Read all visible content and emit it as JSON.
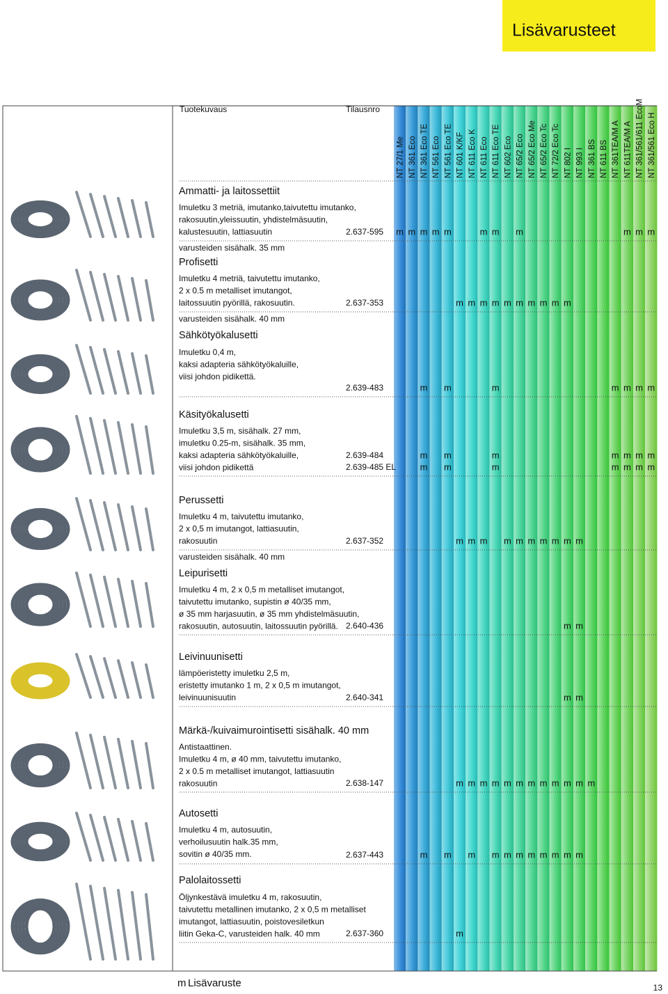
{
  "header": {
    "title": "Lisävarusteet"
  },
  "table": {
    "columns_header": {
      "description": "Tuotekuvaus",
      "order_number": "Tilausnro"
    },
    "models": [
      "NT 27/1 Me",
      "NT 361 Eco",
      "NT 361 Eco TE",
      "NT 561 Eco",
      "NT 561 Eco TE",
      "NT 601 K/KF",
      "NT 611 Eco K",
      "NT 611 Eco",
      "NT 611 Eco TE",
      "NT 602 Eco",
      "NT 65/2 Eco",
      "NT 65/2 Eco Me",
      "NT 65/2 Eco Tc",
      "NT 72/2 Eco Tc",
      "NT 802 I",
      "NT 993 I",
      "NT 361 BS",
      "NT 611 BS",
      "NT 361TEA/M A",
      "NT 611TEA/M A",
      "NT 361/561/611 EcoM",
      "NT 361/561 Eco H"
    ],
    "sections": [
      {
        "title": "Ammatti- ja laitossettiit",
        "lines": [
          "Imuletku 3 metriä, imutanko,taivutettu imutanko,",
          "rakosuutin,yleissuutin, yhdistelmäsuutin,",
          "kalustesuutin, lattiasuutin"
        ],
        "orders": [
          {
            "number": "2.637-595",
            "marks": [
              "m",
              "m",
              "m",
              "m",
              "m",
              null,
              null,
              "m",
              "m",
              null,
              "m",
              null,
              null,
              null,
              null,
              null,
              null,
              null,
              null,
              "m",
              "m",
              "m"
            ]
          }
        ],
        "note": "varusteiden sisähalk. 35 mm"
      },
      {
        "title": "Profisetti",
        "lines": [
          "Imuletku 4 metriä, taivutettu imutanko,",
          "2 x 0.5 m metalliset imutangot,",
          "laitossuutin pyörillä, rakosuutin."
        ],
        "orders": [
          {
            "number": "2.637-353",
            "marks": [
              null,
              null,
              null,
              null,
              null,
              "m",
              "m",
              "m",
              "m",
              "m",
              "m",
              "m",
              "m",
              "m",
              "m",
              null,
              null,
              null,
              null,
              null,
              null,
              null
            ]
          }
        ],
        "note": "varusteiden sisähalk. 40 mm"
      },
      {
        "title": "Sähkötyökalusetti",
        "lines": [
          "Imuletku 0,4 m,",
          "kaksi adapteria sähkötyökaluille,",
          "viisi johdon pidikettä."
        ],
        "orders": [
          {
            "number": "2.639-483",
            "marks": [
              null,
              null,
              "m",
              null,
              "m",
              null,
              null,
              null,
              "m",
              null,
              null,
              null,
              null,
              null,
              null,
              null,
              null,
              null,
              "m",
              "m",
              "m",
              "m"
            ]
          }
        ]
      },
      {
        "title": "Käsityökalusetti",
        "lines": [
          "Imuletku 3,5 m, sisähalk. 27 mm,",
          "imuletku 0.25-m, sisähalk. 35 mm,",
          "kaksi adapteria sähkötyökaluille,",
          "viisi johdon pidikettä"
        ],
        "orders": [
          {
            "number": "2.639-484",
            "marks": [
              null,
              null,
              "m",
              null,
              "m",
              null,
              null,
              null,
              "m",
              null,
              null,
              null,
              null,
              null,
              null,
              null,
              null,
              null,
              "m",
              "m",
              "m",
              "m"
            ]
          },
          {
            "number": "2.639-485 EL",
            "marks": [
              null,
              null,
              "m",
              null,
              "m",
              null,
              null,
              null,
              "m",
              null,
              null,
              null,
              null,
              null,
              null,
              null,
              null,
              null,
              "m",
              "m",
              "m",
              "m"
            ]
          }
        ]
      },
      {
        "title": "Perussetti",
        "lines": [
          "Imuletku 4 m, taivutettu imutanko,",
          "2 x 0,5 m imutangot, lattiasuutin,",
          "rakosuutin"
        ],
        "orders": [
          {
            "number": "2.637-352",
            "marks": [
              null,
              null,
              null,
              null,
              null,
              "m",
              "m",
              "m",
              null,
              "m",
              "m",
              "m",
              "m",
              "m",
              "m",
              "m",
              null,
              null,
              null,
              null,
              null,
              null
            ]
          }
        ],
        "note": "varusteiden sisähalk. 40 mm"
      },
      {
        "title": "Leipurisetti",
        "lines": [
          "Imuletku 4 m, 2 x 0,5 m metalliset imutangot,",
          "taivutettu imutanko, supistin ø 40/35 mm,",
          "ø 35 mm harjasuutin, ø 35 mm yhdistelmäsuutin,",
          "rakosuutin, autosuutin, laitossuutin pyörillä."
        ],
        "orders": [
          {
            "number": "2.640-436",
            "marks": [
              null,
              null,
              null,
              null,
              null,
              null,
              null,
              null,
              null,
              null,
              null,
              null,
              null,
              null,
              "m",
              "m",
              null,
              null,
              null,
              null,
              null,
              null
            ]
          }
        ]
      },
      {
        "title": "Leivinuunisetti",
        "lines": [
          "lämpöeristetty imuletku 2,5 m,",
          "eristetty imutanko 1 m, 2 x 0,5 m imutangot,",
          "leivinuunisuutin"
        ],
        "orders": [
          {
            "number": "2.640-341",
            "marks": [
              null,
              null,
              null,
              null,
              null,
              null,
              null,
              null,
              null,
              null,
              null,
              null,
              null,
              null,
              "m",
              "m",
              null,
              null,
              null,
              null,
              null,
              null
            ]
          }
        ]
      },
      {
        "title": "Märkä-/kuivaimurointisetti sisähalk. 40 mm",
        "lines": [
          "Antistaattinen.",
          "Imuletku 4 m, ø 40 mm, taivutettu imutanko,",
          "2 x 0.5 m metalliset imutangot, lattiasuutin",
          "rakosuutin"
        ],
        "orders": [
          {
            "number": "2.638-147",
            "marks": [
              null,
              null,
              null,
              null,
              null,
              "m",
              "m",
              "m",
              "m",
              "m",
              "m",
              "m",
              "m",
              "m",
              "m",
              "m",
              "m",
              null,
              null,
              null,
              null,
              null
            ]
          }
        ]
      },
      {
        "title": "Autosetti",
        "lines": [
          "Imuletku 4 m, autosuutin,",
          "verhoilusuutin halk.35 mm,",
          "sovitin ø 40/35 mm."
        ],
        "orders": [
          {
            "number": "2.637-443",
            "marks": [
              null,
              null,
              "m",
              null,
              "m",
              null,
              "m",
              null,
              "m",
              "m",
              "m",
              "m",
              "m",
              "m",
              "m",
              "m",
              null,
              null,
              null,
              null,
              null,
              null
            ]
          }
        ]
      },
      {
        "title": "Palolaitossetti",
        "lines": [
          "Öljynkestävä imuletku 4 m, rakosuutin,",
          "taivutettu metallinen imutanko, 2 x 0,5 m metalliset",
          "imutangot, lattiasuutin, poistovesiletkun",
          "liitin Geka-C, varusteiden halk. 40 mm"
        ],
        "orders": [
          {
            "number": "2.637-360",
            "marks": [
              null,
              null,
              null,
              null,
              null,
              "m",
              null,
              null,
              null,
              null,
              null,
              null,
              null,
              null,
              null,
              null,
              null,
              null,
              null,
              null,
              null,
              null
            ]
          }
        ]
      }
    ]
  },
  "legend": {
    "symbol": "m",
    "label": "Lisävaruste"
  },
  "page_number": "13"
}
